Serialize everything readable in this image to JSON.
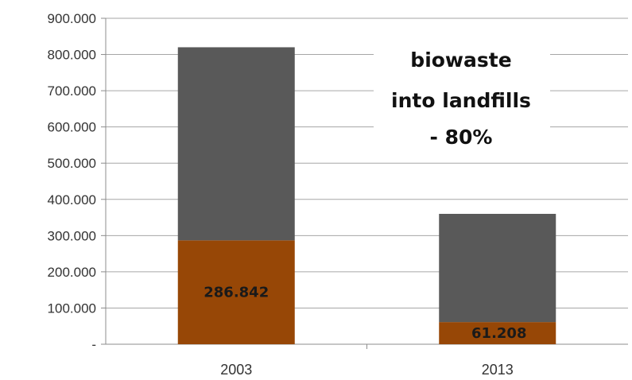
{
  "chart_data": {
    "type": "bar",
    "stacked": true,
    "categories": [
      "2003",
      "2013"
    ],
    "series": [
      {
        "values": [
          286842,
          61208
        ],
        "color": "#974706"
      },
      {
        "values": [
          533158,
          298792
        ],
        "color": "#595959"
      }
    ],
    "totals": [
      820000,
      360000
    ],
    "data_labels": [
      "286.842",
      "61.208"
    ],
    "ylim": [
      0,
      900000
    ],
    "ytick_values": [
      0,
      100000,
      200000,
      300000,
      400000,
      500000,
      600000,
      700000,
      800000,
      900000
    ],
    "ytick_labels": [
      "-",
      "100.000",
      "200.000",
      "300.000",
      "400.000",
      "500.000",
      "600.000",
      "700.000",
      "800.000",
      "900.000"
    ],
    "gridlines": true,
    "legend": "none",
    "annotation": [
      "biowaste",
      "into landfills",
      "- 80%"
    ],
    "title": "",
    "xlabel": "",
    "ylabel": ""
  }
}
